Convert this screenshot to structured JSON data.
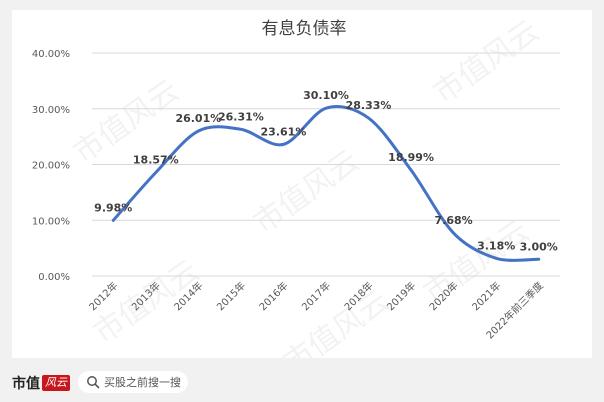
{
  "chart_data": {
    "type": "line",
    "title": "有息负债率",
    "categories": [
      "2012年",
      "2013年",
      "2014年",
      "2015年",
      "2016年",
      "2017年",
      "2018年",
      "2019年",
      "2020年",
      "2021年",
      "2022年前三季度"
    ],
    "values": [
      9.98,
      18.57,
      26.01,
      26.31,
      23.61,
      30.1,
      28.33,
      18.99,
      7.68,
      3.18,
      3.0
    ],
    "data_labels": [
      "9.98%",
      "18.57%",
      "26.01%",
      "26.31%",
      "23.61%",
      "30.10%",
      "28.33%",
      "18.99%",
      "7.68%",
      "3.18%",
      "3.00%"
    ],
    "y_ticks": [
      "0.00%",
      "10.00%",
      "20.00%",
      "30.00%",
      "40.00%"
    ],
    "ylim": [
      0,
      40
    ],
    "grid": true,
    "line_color": "#4472c4",
    "label_color": "#404040",
    "axis_color": "#595959",
    "watermark": "市值风云"
  },
  "footer": {
    "brand": "市值",
    "brand_seal": "风云",
    "search_text": "买股之前搜一搜"
  },
  "colors": {
    "background": "#f1f1f1",
    "card": "#ffffff",
    "gridline": "#d9d9d9"
  }
}
